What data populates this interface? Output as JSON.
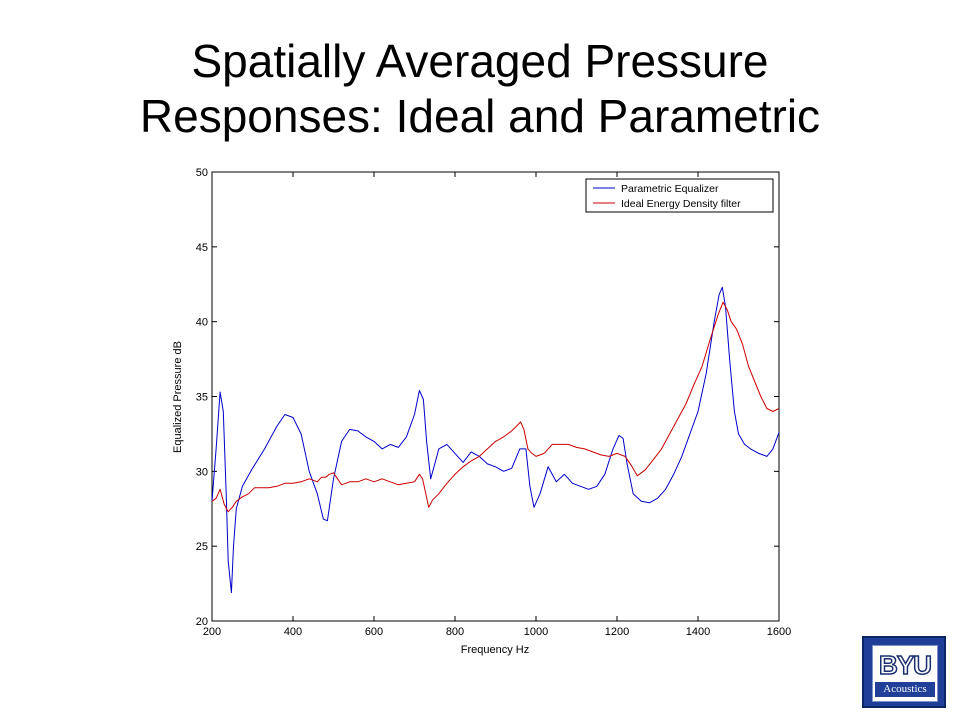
{
  "title": {
    "line1": "Spatially Averaged Pressure",
    "line2": "Responses: Ideal and Parametric"
  },
  "chart_data": {
    "type": "line",
    "xlabel": "Frequency Hz",
    "ylabel": "Equalized Pressure dB",
    "xlim": [
      200,
      1600
    ],
    "ylim": [
      20,
      50
    ],
    "xticks": [
      200,
      400,
      600,
      800,
      1000,
      1200,
      1400,
      1600
    ],
    "yticks": [
      20,
      25,
      30,
      35,
      40,
      45,
      50
    ],
    "grid": false,
    "legend_position": "top-right",
    "colors": {
      "Parametric Equalizer": "#0000cc",
      "Ideal Energy Density filter": "#cc0000"
    },
    "series": [
      {
        "name": "Parametric Equalizer",
        "x": [
          200,
          210,
          220,
          228,
          235,
          240,
          248,
          253,
          260,
          275,
          300,
          330,
          360,
          380,
          400,
          420,
          440,
          460,
          475,
          485,
          500,
          520,
          540,
          560,
          580,
          600,
          620,
          640,
          660,
          680,
          700,
          712,
          722,
          730,
          740,
          750,
          760,
          780,
          800,
          820,
          840,
          860,
          880,
          900,
          920,
          940,
          960,
          975,
          985,
          995,
          1010,
          1030,
          1050,
          1070,
          1090,
          1110,
          1130,
          1150,
          1170,
          1190,
          1205,
          1215,
          1225,
          1240,
          1260,
          1280,
          1300,
          1320,
          1340,
          1360,
          1380,
          1400,
          1420,
          1440,
          1452,
          1460,
          1468,
          1478,
          1490,
          1500,
          1515,
          1530,
          1550,
          1570,
          1585,
          1600
        ],
        "values": [
          28.0,
          31.5,
          35.3,
          34.0,
          28.5,
          24.0,
          21.9,
          25.0,
          27.5,
          29.0,
          30.2,
          31.5,
          33.0,
          33.8,
          33.6,
          32.5,
          30.0,
          28.5,
          26.8,
          26.7,
          29.5,
          32.0,
          32.8,
          32.7,
          32.3,
          32.0,
          31.5,
          31.8,
          31.6,
          32.3,
          33.8,
          35.4,
          34.8,
          32.0,
          29.5,
          30.5,
          31.5,
          31.8,
          31.2,
          30.6,
          31.3,
          31.0,
          30.5,
          30.3,
          30.0,
          30.2,
          31.5,
          31.5,
          29.0,
          27.6,
          28.5,
          30.3,
          29.3,
          29.8,
          29.2,
          29.0,
          28.8,
          29.0,
          29.8,
          31.5,
          32.4,
          32.2,
          30.5,
          28.5,
          28.0,
          27.9,
          28.2,
          28.8,
          29.8,
          31.0,
          32.5,
          34.0,
          36.5,
          40.0,
          41.8,
          42.3,
          41.0,
          37.5,
          34.0,
          32.5,
          31.8,
          31.5,
          31.2,
          31.0,
          31.5,
          32.6
        ]
      },
      {
        "name": "Ideal Energy Density filter",
        "x": [
          200,
          210,
          220,
          230,
          240,
          250,
          260,
          275,
          290,
          305,
          320,
          340,
          360,
          380,
          400,
          420,
          440,
          460,
          470,
          480,
          490,
          500,
          520,
          540,
          560,
          580,
          600,
          620,
          640,
          660,
          680,
          700,
          712,
          720,
          728,
          735,
          745,
          760,
          780,
          800,
          820,
          840,
          860,
          880,
          900,
          920,
          940,
          955,
          962,
          970,
          980,
          990,
          1000,
          1020,
          1040,
          1060,
          1080,
          1100,
          1120,
          1140,
          1160,
          1180,
          1200,
          1220,
          1235,
          1250,
          1270,
          1290,
          1310,
          1330,
          1350,
          1370,
          1390,
          1410,
          1430,
          1450,
          1462,
          1472,
          1482,
          1495,
          1510,
          1525,
          1540,
          1555,
          1570,
          1585,
          1600
        ],
        "values": [
          28.0,
          28.2,
          28.8,
          27.8,
          27.3,
          27.6,
          28.0,
          28.3,
          28.5,
          28.9,
          28.9,
          28.9,
          29.0,
          29.2,
          29.2,
          29.3,
          29.5,
          29.3,
          29.6,
          29.6,
          29.8,
          29.9,
          29.1,
          29.3,
          29.3,
          29.5,
          29.3,
          29.5,
          29.3,
          29.1,
          29.2,
          29.3,
          29.8,
          29.5,
          28.5,
          27.6,
          28.1,
          28.5,
          29.2,
          29.8,
          30.3,
          30.7,
          31.0,
          31.5,
          32.0,
          32.3,
          32.7,
          33.1,
          33.3,
          32.8,
          31.5,
          31.2,
          31.0,
          31.2,
          31.8,
          31.8,
          31.8,
          31.6,
          31.5,
          31.3,
          31.1,
          31.0,
          31.2,
          31.0,
          30.4,
          29.7,
          30.1,
          30.8,
          31.5,
          32.5,
          33.5,
          34.5,
          35.8,
          37.0,
          38.8,
          40.5,
          41.3,
          40.8,
          40.0,
          39.5,
          38.5,
          37.0,
          36.0,
          35.0,
          34.2,
          34.0,
          34.2
        ]
      }
    ]
  },
  "logo": {
    "word": "BYU",
    "sub": "Acoustics"
  }
}
